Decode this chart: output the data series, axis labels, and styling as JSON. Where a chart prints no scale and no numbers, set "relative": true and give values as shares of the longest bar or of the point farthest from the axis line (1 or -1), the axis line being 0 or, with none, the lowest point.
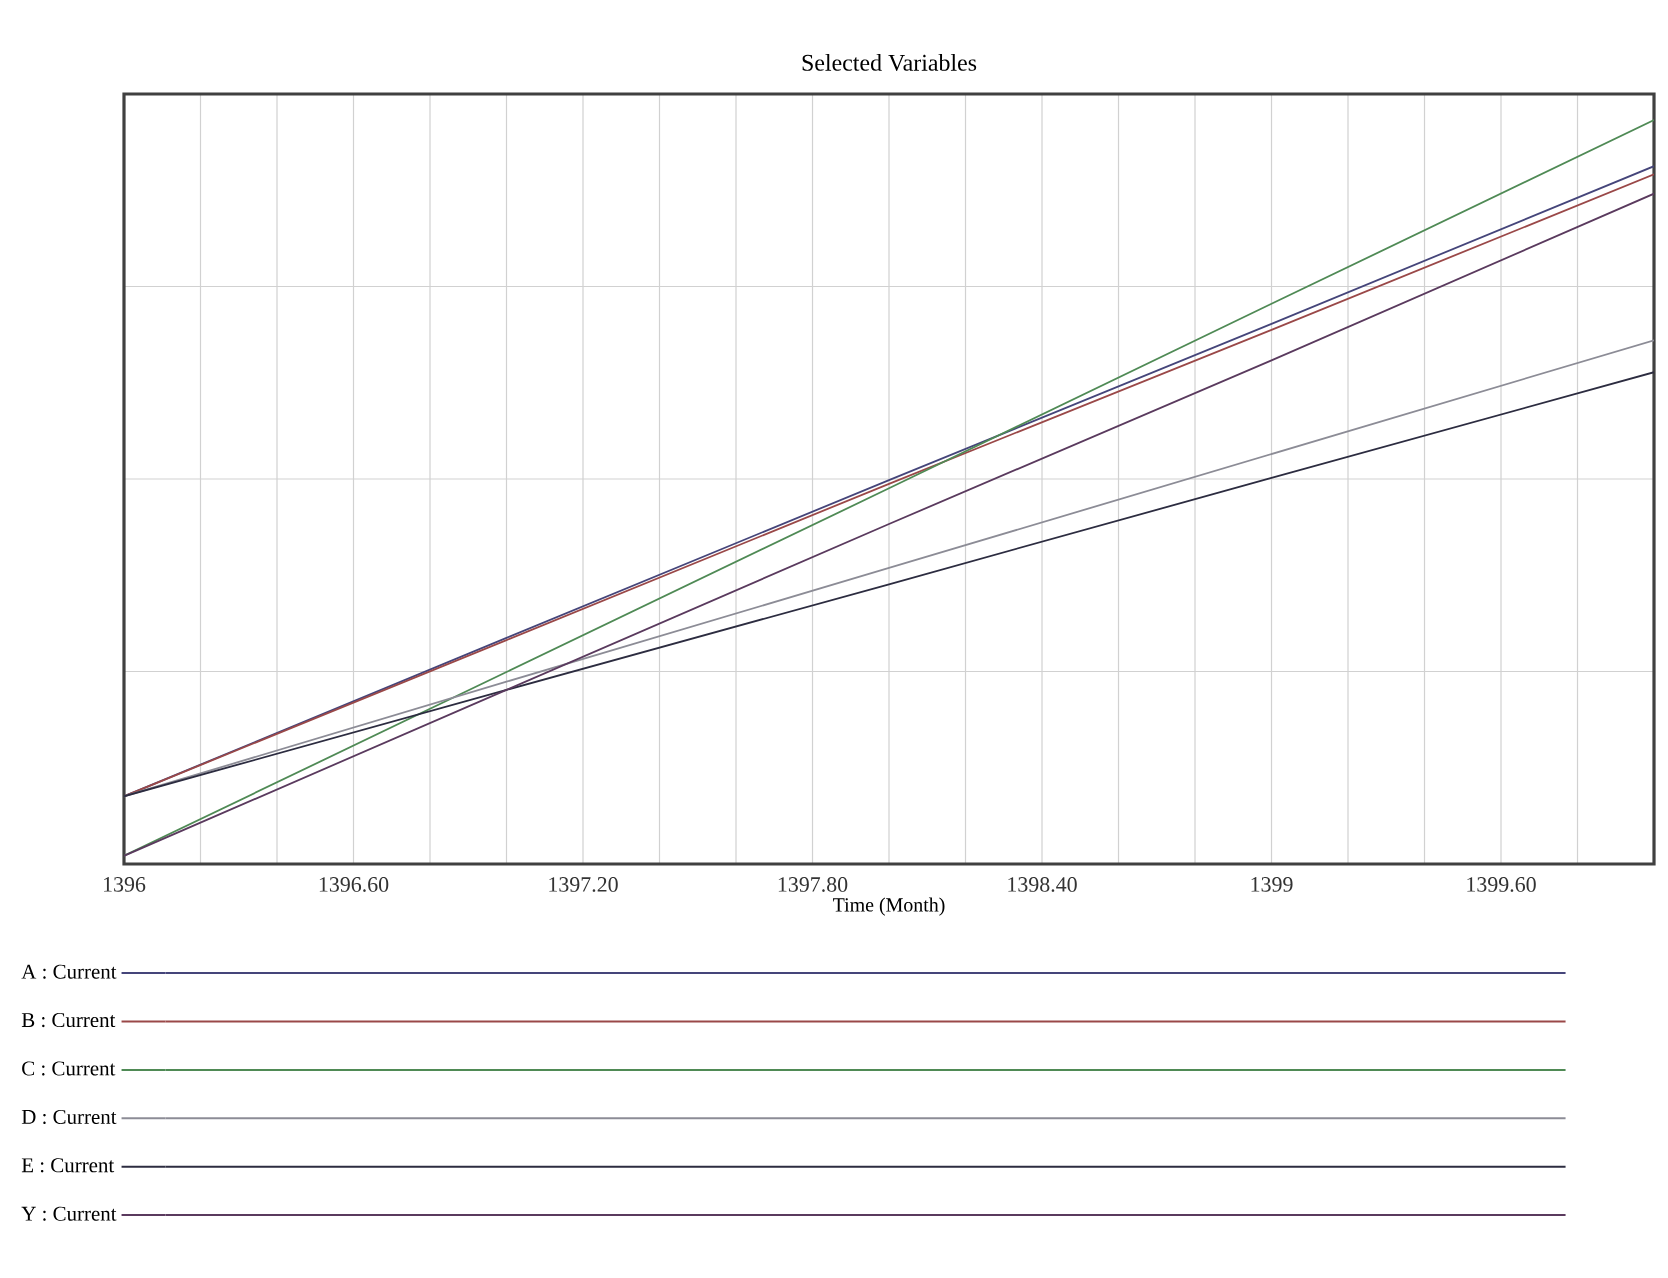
{
  "chart_data": {
    "type": "line",
    "title": "Selected Variables",
    "xlabel": "Time (Month)",
    "relative": true,
    "x": [
      1396,
      1397,
      1398,
      1399,
      1400
    ],
    "xlim": [
      1396,
      1400
    ],
    "xticks": [
      1396,
      {
        "value": 1396.2,
        "label": null
      },
      {
        "value": 1396.4,
        "label": null
      },
      {
        "value": 1396.6,
        "label": "1396.60"
      },
      {
        "value": 1396.8,
        "label": null
      },
      {
        "value": 1397.0,
        "label": null
      },
      {
        "value": 1397.2,
        "label": "1397.20"
      },
      {
        "value": 1397.4,
        "label": null
      },
      {
        "value": 1397.6,
        "label": null
      },
      {
        "value": 1397.8,
        "label": "1397.80"
      },
      {
        "value": 1398.0,
        "label": null
      },
      {
        "value": 1398.2,
        "label": null
      },
      {
        "value": 1398.4,
        "label": "1398.40"
      },
      {
        "value": 1398.6,
        "label": null
      },
      {
        "value": 1398.8,
        "label": null
      },
      1399,
      {
        "value": 1399.2,
        "label": null
      },
      {
        "value": 1399.4,
        "label": null
      },
      {
        "value": 1399.6,
        "label": "1399.60"
      },
      {
        "value": 1399.8,
        "label": null
      }
    ],
    "grid": true,
    "legend": "bottom",
    "marker": "none",
    "line_style": "solid",
    "series": [
      {
        "name": "A : Current",
        "color": "#45457a",
        "values": [
          0.091,
          0.304,
          0.516,
          0.726,
          0.938
        ]
      },
      {
        "name": "B : Current",
        "color": "#9a4848",
        "values": [
          0.091,
          0.301,
          0.511,
          0.718,
          0.927
        ]
      },
      {
        "name": "C : Current",
        "color": "#4f8a55",
        "values": [
          0.011,
          0.258,
          0.505,
          0.753,
          1
        ]
      },
      {
        "name": "D : Current",
        "color": "#8c8c96",
        "values": [
          0.091,
          0.245,
          0.398,
          0.551,
          0.704
        ]
      },
      {
        "name": "E : Current",
        "color": "#2c2c40",
        "values": [
          0.091,
          0.234,
          0.376,
          0.519,
          0.661
        ]
      },
      {
        "name": "Y : Current",
        "color": "#5a3a5e",
        "values": [
          0.011,
          0.234,
          0.457,
          0.677,
          0.901
        ]
      }
    ]
  }
}
